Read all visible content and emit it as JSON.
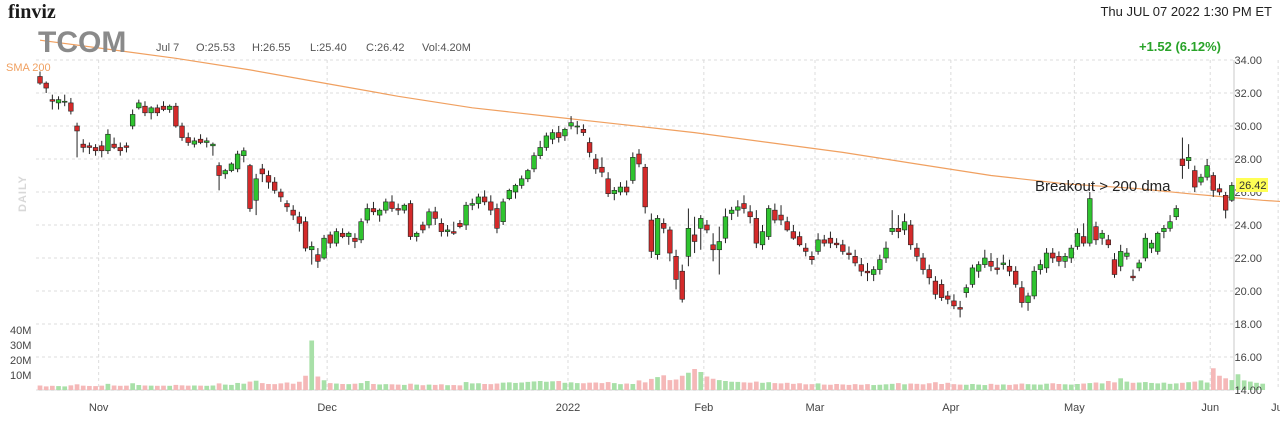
{
  "header": {
    "brand": "finviz",
    "datetime": "Thu JUL 07 2022 1:30 PM ET",
    "ticker": "TCOM",
    "bar_date": "Jul 7",
    "open": "O:25.53",
    "high": "H:26.55",
    "low": "L:25.40",
    "close": "C:26.42",
    "volume": "Vol:4.20M",
    "change": "+1.52 (6.12%)"
  },
  "labels": {
    "sma": "SMA 200",
    "timeframe": "DAILY",
    "annotation": "Breakout > 200 dma",
    "last_price": "26.42"
  },
  "colors": {
    "up": "#2fc42f",
    "down": "#d42a2a",
    "sma": "#f0a060",
    "vol_up": "#a8e0a8",
    "vol_down": "#f5b8b8",
    "last_price_bg": "#ffff55"
  },
  "chart_data": {
    "type": "candlestick",
    "price_axis": {
      "min": 14,
      "max": 34,
      "ticks": [
        "14.00",
        "16.00",
        "18.00",
        "20.00",
        "22.00",
        "24.00",
        "26.00",
        "28.00",
        "30.00",
        "32.00",
        "34.00"
      ]
    },
    "volume_axis": {
      "ticks": [
        "10M",
        "20M",
        "30M",
        "40M"
      ]
    },
    "months": [
      "Nov",
      "Dec",
      "2022",
      "Feb",
      "Mar",
      "Apr",
      "May",
      "Jun",
      "Jul"
    ],
    "grid": true,
    "candles": [
      [
        33.0,
        33.3,
        32.5,
        32.6
      ],
      [
        32.6,
        32.7,
        32.0,
        32.3
      ],
      [
        31.6,
        31.9,
        31.0,
        31.5
      ],
      [
        31.4,
        31.8,
        31.0,
        31.6
      ],
      [
        31.5,
        31.9,
        31.2,
        31.5
      ],
      [
        31.4,
        31.7,
        30.7,
        30.9
      ],
      [
        30.0,
        30.2,
        28.1,
        29.7
      ],
      [
        28.9,
        29.2,
        28.4,
        28.7
      ],
      [
        28.8,
        29.0,
        28.3,
        28.7
      ],
      [
        28.7,
        28.9,
        28.2,
        28.5
      ],
      [
        28.8,
        29.1,
        28.1,
        28.5
      ],
      [
        28.5,
        29.8,
        28.3,
        29.5
      ],
      [
        28.9,
        29.3,
        28.6,
        28.7
      ],
      [
        28.7,
        29.0,
        28.2,
        28.5
      ],
      [
        28.8,
        29.0,
        28.4,
        28.7
      ],
      [
        30.0,
        31.0,
        29.8,
        30.7
      ],
      [
        31.1,
        31.6,
        31.0,
        31.4
      ],
      [
        31.2,
        31.5,
        30.6,
        30.8
      ],
      [
        30.8,
        31.2,
        30.4,
        31.1
      ],
      [
        31.1,
        31.3,
        30.6,
        30.8
      ],
      [
        31.2,
        31.5,
        30.9,
        31.0
      ],
      [
        31.0,
        31.3,
        30.8,
        31.2
      ],
      [
        31.2,
        31.4,
        29.9,
        30.0
      ],
      [
        30.0,
        30.2,
        29.1,
        29.3
      ],
      [
        29.3,
        29.6,
        28.8,
        29.0
      ],
      [
        28.9,
        29.3,
        28.7,
        29.1
      ],
      [
        29.2,
        29.5,
        28.9,
        29.0
      ],
      [
        29.0,
        29.3,
        28.7,
        29.1
      ],
      [
        28.8,
        29.0,
        28.2,
        28.9
      ],
      [
        27.6,
        27.8,
        26.1,
        27.0
      ],
      [
        27.1,
        27.4,
        26.8,
        27.3
      ],
      [
        27.3,
        27.8,
        27.2,
        27.7
      ],
      [
        27.4,
        28.5,
        27.2,
        28.3
      ],
      [
        28.2,
        28.7,
        27.8,
        28.5
      ],
      [
        27.6,
        27.7,
        24.8,
        25.0
      ],
      [
        25.5,
        27.1,
        24.6,
        26.8
      ],
      [
        27.4,
        27.7,
        26.6,
        27.1
      ],
      [
        27.0,
        27.3,
        26.2,
        26.6
      ],
      [
        26.6,
        26.9,
        25.9,
        26.1
      ],
      [
        26.0,
        26.2,
        25.4,
        25.7
      ],
      [
        25.3,
        25.5,
        24.8,
        25.1
      ],
      [
        24.9,
        25.2,
        24.3,
        24.6
      ],
      [
        24.5,
        24.8,
        23.6,
        24.1
      ],
      [
        24.2,
        24.5,
        22.4,
        22.6
      ],
      [
        22.5,
        23.0,
        21.6,
        22.7
      ],
      [
        22.2,
        22.6,
        21.4,
        21.8
      ],
      [
        22.0,
        23.4,
        21.9,
        23.2
      ],
      [
        23.4,
        23.6,
        22.6,
        22.9
      ],
      [
        22.9,
        23.8,
        22.7,
        23.6
      ],
      [
        23.5,
        23.8,
        23.2,
        23.3
      ],
      [
        23.3,
        23.6,
        22.8,
        23.5
      ],
      [
        23.2,
        23.5,
        22.6,
        23.0
      ],
      [
        23.1,
        24.4,
        22.9,
        24.2
      ],
      [
        24.3,
        25.3,
        24.1,
        25.0
      ],
      [
        25.0,
        25.4,
        24.6,
        24.8
      ],
      [
        24.6,
        25.0,
        24.2,
        24.9
      ],
      [
        24.9,
        25.6,
        24.7,
        25.4
      ],
      [
        25.4,
        25.8,
        24.8,
        25.0
      ],
      [
        25.0,
        25.3,
        24.6,
        24.9
      ],
      [
        24.9,
        25.3,
        24.7,
        25.2
      ],
      [
        25.3,
        25.5,
        23.1,
        23.3
      ],
      [
        23.3,
        23.6,
        23.0,
        23.5
      ],
      [
        24.0,
        24.2,
        23.5,
        23.7
      ],
      [
        24.0,
        25.0,
        23.8,
        24.8
      ],
      [
        24.8,
        25.1,
        24.0,
        24.4
      ],
      [
        24.1,
        24.4,
        23.3,
        23.6
      ],
      [
        23.6,
        24.0,
        23.3,
        23.7
      ],
      [
        23.6,
        24.2,
        23.4,
        23.5
      ],
      [
        24.1,
        24.3,
        23.8,
        23.9
      ],
      [
        24.0,
        25.4,
        23.7,
        25.2
      ],
      [
        25.2,
        25.6,
        24.9,
        25.3
      ],
      [
        25.3,
        25.9,
        25.0,
        25.7
      ],
      [
        25.7,
        26.1,
        25.2,
        25.4
      ],
      [
        25.4,
        25.8,
        24.6,
        24.9
      ],
      [
        25.0,
        25.3,
        23.5,
        23.8
      ],
      [
        24.2,
        25.6,
        24.0,
        25.4
      ],
      [
        25.6,
        26.2,
        25.5,
        26.1
      ],
      [
        26.0,
        26.5,
        25.6,
        26.4
      ],
      [
        26.4,
        27.0,
        26.2,
        26.8
      ],
      [
        26.8,
        27.4,
        26.6,
        27.3
      ],
      [
        27.4,
        28.4,
        27.2,
        28.2
      ],
      [
        28.2,
        29.1,
        28.0,
        28.7
      ],
      [
        28.7,
        29.6,
        28.5,
        29.4
      ],
      [
        29.2,
        29.8,
        28.9,
        29.6
      ],
      [
        29.6,
        30.0,
        29.0,
        29.3
      ],
      [
        29.4,
        29.9,
        29.1,
        29.8
      ],
      [
        30.0,
        30.6,
        29.8,
        30.2
      ],
      [
        30.0,
        30.3,
        29.5,
        30.0
      ],
      [
        29.8,
        30.1,
        29.4,
        29.6
      ],
      [
        29.0,
        29.3,
        28.1,
        28.4
      ],
      [
        28.0,
        28.3,
        27.1,
        27.4
      ],
      [
        27.5,
        28.1,
        26.9,
        27.2
      ],
      [
        26.8,
        27.2,
        25.7,
        25.9
      ],
      [
        25.9,
        26.3,
        25.5,
        26.1
      ],
      [
        26.0,
        26.6,
        25.8,
        26.3
      ],
      [
        26.3,
        26.7,
        25.8,
        26.0
      ],
      [
        26.7,
        28.4,
        26.5,
        28.1
      ],
      [
        28.3,
        28.6,
        27.5,
        27.7
      ],
      [
        27.5,
        27.7,
        24.7,
        25.1
      ],
      [
        24.3,
        24.7,
        22.0,
        22.4
      ],
      [
        22.2,
        24.6,
        21.9,
        24.4
      ],
      [
        24.1,
        24.4,
        23.5,
        23.8
      ],
      [
        23.7,
        23.9,
        21.8,
        22.3
      ],
      [
        22.1,
        22.5,
        20.1,
        20.7
      ],
      [
        21.2,
        21.6,
        19.3,
        19.5
      ],
      [
        22.1,
        25.0,
        21.5,
        23.8
      ],
      [
        23.4,
        24.5,
        22.3,
        23.0
      ],
      [
        23.8,
        24.6,
        22.5,
        24.4
      ],
      [
        24.0,
        24.3,
        23.5,
        23.7
      ],
      [
        22.8,
        23.5,
        21.8,
        22.5
      ],
      [
        22.5,
        23.9,
        21.0,
        23.0
      ],
      [
        23.2,
        25.0,
        22.9,
        24.5
      ],
      [
        24.7,
        25.1,
        24.3,
        24.9
      ],
      [
        24.9,
        25.5,
        24.5,
        25.1
      ],
      [
        25.3,
        25.8,
        24.7,
        25.0
      ],
      [
        24.8,
        25.2,
        24.1,
        24.5
      ],
      [
        24.4,
        24.9,
        22.6,
        22.9
      ],
      [
        22.8,
        24.0,
        22.5,
        23.6
      ],
      [
        23.3,
        25.2,
        23.1,
        25.0
      ],
      [
        24.9,
        25.3,
        24.1,
        24.3
      ],
      [
        24.6,
        25.2,
        24.0,
        24.3
      ],
      [
        24.2,
        24.5,
        23.6,
        23.7
      ],
      [
        23.6,
        24.0,
        23.1,
        23.2
      ],
      [
        23.3,
        23.6,
        22.7,
        22.8
      ],
      [
        22.6,
        22.9,
        22.1,
        22.4
      ],
      [
        22.1,
        22.4,
        21.6,
        21.9
      ],
      [
        22.4,
        23.5,
        22.2,
        23.1
      ],
      [
        23.1,
        23.4,
        22.7,
        22.9
      ],
      [
        23.2,
        23.6,
        22.6,
        22.9
      ],
      [
        22.9,
        23.2,
        22.6,
        22.8
      ],
      [
        22.8,
        23.1,
        22.2,
        22.4
      ],
      [
        22.3,
        22.7,
        21.9,
        22.2
      ],
      [
        22.1,
        22.5,
        21.5,
        21.7
      ],
      [
        21.6,
        22.0,
        20.9,
        21.2
      ],
      [
        21.2,
        21.7,
        20.6,
        21.1
      ],
      [
        21.0,
        21.5,
        20.6,
        21.3
      ],
      [
        21.3,
        22.2,
        21.0,
        21.9
      ],
      [
        22.0,
        23.0,
        21.7,
        22.6
      ],
      [
        23.6,
        24.9,
        23.4,
        23.8
      ],
      [
        23.8,
        24.6,
        23.2,
        23.6
      ],
      [
        23.7,
        24.7,
        23.4,
        24.2
      ],
      [
        24.0,
        24.3,
        22.5,
        22.8
      ],
      [
        22.6,
        22.9,
        21.8,
        22.1
      ],
      [
        22.0,
        22.3,
        21.0,
        21.3
      ],
      [
        21.3,
        21.6,
        20.4,
        20.8
      ],
      [
        20.6,
        20.9,
        19.5,
        19.8
      ],
      [
        20.4,
        20.7,
        19.4,
        19.6
      ],
      [
        19.7,
        20.0,
        19.2,
        19.5
      ],
      [
        19.4,
        19.8,
        18.9,
        19.1
      ],
      [
        19.0,
        19.4,
        18.4,
        18.9
      ],
      [
        19.9,
        20.4,
        19.6,
        20.2
      ],
      [
        20.4,
        21.6,
        20.2,
        21.4
      ],
      [
        21.2,
        21.8,
        20.8,
        21.6
      ],
      [
        21.6,
        22.5,
        21.4,
        22.0
      ],
      [
        21.8,
        22.3,
        21.2,
        21.5
      ],
      [
        21.4,
        22.0,
        21.0,
        21.3
      ],
      [
        21.6,
        22.2,
        21.3,
        21.7
      ],
      [
        21.5,
        21.9,
        20.9,
        21.2
      ],
      [
        21.2,
        21.5,
        20.2,
        20.4
      ],
      [
        20.2,
        20.6,
        19.0,
        19.3
      ],
      [
        19.3,
        19.9,
        18.8,
        19.7
      ],
      [
        19.7,
        21.5,
        19.5,
        21.2
      ],
      [
        21.3,
        21.9,
        21.0,
        21.6
      ],
      [
        21.4,
        22.6,
        21.1,
        22.3
      ],
      [
        22.3,
        22.6,
        21.7,
        22.0
      ],
      [
        22.1,
        22.4,
        21.5,
        21.8
      ],
      [
        21.8,
        22.3,
        21.4,
        22.1
      ],
      [
        22.0,
        22.8,
        21.7,
        22.6
      ],
      [
        22.7,
        23.8,
        22.5,
        23.5
      ],
      [
        23.3,
        24.1,
        22.7,
        22.9
      ],
      [
        22.9,
        26.0,
        22.7,
        25.6
      ],
      [
        23.9,
        24.2,
        22.8,
        23.1
      ],
      [
        23.2,
        23.7,
        22.8,
        23.5
      ],
      [
        23.1,
        23.4,
        22.6,
        22.8
      ],
      [
        21.9,
        22.3,
        20.8,
        21.0
      ],
      [
        21.5,
        22.8,
        21.2,
        22.4
      ],
      [
        22.1,
        22.6,
        21.9,
        22.3
      ],
      [
        20.9,
        21.3,
        20.6,
        20.8
      ],
      [
        21.4,
        21.9,
        21.2,
        21.7
      ],
      [
        22.0,
        23.5,
        21.8,
        23.2
      ],
      [
        22.6,
        23.1,
        22.3,
        22.9
      ],
      [
        22.4,
        23.6,
        22.2,
        23.5
      ],
      [
        23.6,
        24.0,
        23.2,
        23.8
      ],
      [
        23.8,
        24.6,
        23.6,
        24.2
      ],
      [
        24.5,
        25.2,
        24.3,
        25.0
      ],
      [
        28.0,
        29.3,
        26.8,
        27.6
      ],
      [
        27.9,
        28.9,
        27.4,
        28.1
      ],
      [
        27.3,
        27.6,
        26.0,
        26.3
      ],
      [
        26.6,
        27.1,
        26.4,
        26.9
      ],
      [
        26.9,
        28.0,
        26.7,
        27.6
      ],
      [
        27.0,
        27.2,
        25.7,
        26.1
      ],
      [
        26.2,
        26.5,
        25.8,
        26.0
      ],
      [
        25.8,
        26.0,
        24.4,
        24.9
      ],
      [
        25.5,
        26.6,
        25.4,
        26.4
      ]
    ],
    "sma200": [
      {
        "i": 0,
        "v": 35.2
      },
      {
        "i": 10,
        "v": 34.7
      },
      {
        "i": 22,
        "v": 34.1
      },
      {
        "i": 34,
        "v": 33.4
      },
      {
        "i": 46,
        "v": 32.6
      },
      {
        "i": 58,
        "v": 31.8
      },
      {
        "i": 70,
        "v": 31.1
      },
      {
        "i": 82,
        "v": 30.6
      },
      {
        "i": 94,
        "v": 30.1
      },
      {
        "i": 106,
        "v": 29.6
      },
      {
        "i": 118,
        "v": 29.0
      },
      {
        "i": 130,
        "v": 28.4
      },
      {
        "i": 142,
        "v": 27.7
      },
      {
        "i": 154,
        "v": 27.0
      },
      {
        "i": 166,
        "v": 26.5
      },
      {
        "i": 178,
        "v": 26.2
      },
      {
        "i": 186,
        "v": 25.9
      },
      {
        "i": 192,
        "v": 25.7
      },
      {
        "i": 198,
        "v": 25.5
      },
      {
        "i": 202,
        "v": 25.4
      }
    ],
    "volume": [
      3.0,
      2.4,
      2.8,
      2.6,
      2.4,
      3.1,
      3.8,
      2.9,
      2.7,
      2.6,
      2.9,
      4.1,
      3.0,
      2.8,
      2.9,
      4.5,
      3.3,
      3.0,
      2.9,
      2.8,
      2.9,
      2.8,
      3.4,
      3.1,
      2.9,
      3.0,
      2.9,
      2.8,
      3.0,
      4.4,
      3.6,
      3.4,
      4.7,
      4.2,
      5.6,
      6.2,
      4.6,
      4.0,
      3.9,
      4.4,
      5.0,
      4.2,
      5.5,
      9.5,
      33.0,
      9.0,
      6.5,
      4.6,
      4.3,
      4.0,
      3.9,
      4.2,
      4.6,
      6.0,
      4.0,
      3.7,
      3.9,
      3.8,
      3.6,
      3.4,
      4.2,
      3.6,
      3.2,
      3.6,
      3.4,
      3.8,
      3.2,
      3.3,
      3.1,
      5.3,
      4.4,
      4.5,
      4.0,
      3.9,
      4.3,
      4.9,
      5.1,
      4.7,
      5.0,
      5.4,
      5.7,
      6.0,
      5.5,
      5.8,
      6.0,
      4.8,
      5.1,
      4.6,
      4.5,
      4.9,
      5.0,
      4.6,
      5.3,
      4.6,
      3.9,
      4.3,
      4.0,
      6.4,
      5.1,
      7.4,
      8.6,
      9.8,
      6.6,
      7.0,
      9.5,
      11.5,
      14.0,
      12.0,
      9.0,
      7.5,
      6.6,
      6.0,
      5.5,
      5.4,
      5.1,
      4.9,
      5.6,
      4.8,
      5.2,
      4.6,
      4.4,
      4.8,
      4.1,
      4.5,
      3.8,
      3.9,
      4.4,
      3.6,
      3.5,
      4.0,
      3.7,
      3.4,
      3.9,
      3.5,
      3.9,
      3.3,
      3.5,
      3.8,
      4.1,
      4.6,
      3.8,
      4.3,
      4.1,
      3.8,
      4.5,
      5.2,
      4.0,
      4.8,
      3.9,
      3.6,
      3.5,
      4.0,
      3.6,
      3.3,
      4.1,
      3.5,
      3.7,
      3.4,
      3.8,
      4.3,
      3.9,
      3.7,
      3.6,
      4.2,
      4.5,
      4.0,
      3.8,
      3.6,
      4.0,
      4.3,
      4.6,
      5.0,
      4.4,
      6.0,
      5.1,
      7.8,
      5.6,
      4.8,
      5.0,
      5.3,
      4.7,
      4.4,
      4.9,
      4.1,
      4.4,
      4.8,
      5.2,
      5.6,
      6.4,
      5.0,
      14.5,
      9.5,
      7.8,
      6.6,
      10.5,
      6.4,
      5.6,
      4.8,
      4.2
    ]
  }
}
